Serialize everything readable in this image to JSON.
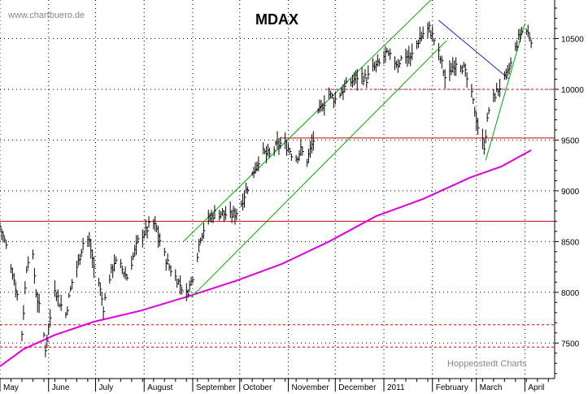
{
  "header": {
    "watermark": "www.chartbuero.de",
    "title": "MDAX",
    "credit": "Hoppenstedt Charts"
  },
  "chart_data": {
    "type": "line",
    "title": "MDAX",
    "xlabel": "",
    "ylabel": "",
    "y_range": [
      7150,
      10880
    ],
    "x_range_days": [
      0,
      354
    ],
    "y_ticks": [
      7500,
      8000,
      8500,
      9000,
      9500,
      10000,
      10500
    ],
    "y_tick_labels": [
      "7500",
      "8000",
      "8500",
      "9000",
      "9500",
      "10000",
      "10500"
    ],
    "months": [
      {
        "label": "May",
        "start": 0
      },
      {
        "label": "June",
        "start": 31
      },
      {
        "label": "July",
        "start": 61
      },
      {
        "label": "August",
        "start": 92
      },
      {
        "label": "September",
        "start": 123
      },
      {
        "label": "October",
        "start": 153
      },
      {
        "label": "November",
        "start": 184
      },
      {
        "label": "December",
        "start": 214
      },
      {
        "label": "2011",
        "start": 245
      },
      {
        "label": "February",
        "start": 276
      },
      {
        "label": "March",
        "start": 304
      },
      {
        "label": "April",
        "start": 335
      }
    ],
    "grid": true,
    "horizontal_lines": [
      {
        "y": 8700,
        "style": "solid",
        "color": "#d40000",
        "from": 0,
        "to": 354
      },
      {
        "y": 9520,
        "style": "solid",
        "color": "#d40000",
        "from": 179,
        "to": 354
      },
      {
        "y": 10000,
        "style": "dashed",
        "color": "#d40000",
        "from": 208,
        "to": 354
      },
      {
        "y": 7680,
        "style": "dashed",
        "color": "#d40000",
        "from": 0,
        "to": 354
      },
      {
        "y": 7460,
        "style": "dashed",
        "color": "#d40000",
        "from": 0,
        "to": 354
      }
    ],
    "trend_lines": [
      {
        "color": "#00aa00",
        "points": [
          [
            117,
            8500
          ],
          [
            275,
            10880
          ]
        ]
      },
      {
        "color": "#00aa00",
        "points": [
          [
            122,
            7950
          ],
          [
            285,
            10480
          ]
        ]
      },
      {
        "color": "#2222aa",
        "points": [
          [
            280,
            10680
          ],
          [
            325,
            10100
          ]
        ]
      },
      {
        "color": "#00aa00",
        "points": [
          [
            310,
            9300
          ],
          [
            335,
            10650
          ]
        ]
      }
    ],
    "moving_average": {
      "color": "#dd00dd",
      "points": [
        [
          0,
          7270
        ],
        [
          15,
          7440
        ],
        [
          35,
          7580
        ],
        [
          60,
          7710
        ],
        [
          90,
          7820
        ],
        [
          120,
          7960
        ],
        [
          150,
          8110
        ],
        [
          180,
          8280
        ],
        [
          210,
          8500
        ],
        [
          240,
          8750
        ],
        [
          270,
          8920
        ],
        [
          300,
          9130
        ],
        [
          320,
          9240
        ],
        [
          339,
          9400
        ]
      ]
    },
    "series": [
      {
        "name": "",
        "values": [
          [
            0,
            8650
          ],
          [
            4,
            8450
          ],
          [
            8,
            8200
          ],
          [
            12,
            7900
          ],
          [
            14,
            7600
          ],
          [
            17,
            8250
          ],
          [
            20,
            8500
          ],
          [
            23,
            8000
          ],
          [
            27,
            7700
          ],
          [
            29,
            7450
          ],
          [
            32,
            7750
          ],
          [
            35,
            8050
          ],
          [
            38,
            7900
          ],
          [
            42,
            7780
          ],
          [
            46,
            8100
          ],
          [
            50,
            8300
          ],
          [
            54,
            8550
          ],
          [
            57,
            8500
          ],
          [
            60,
            8250
          ],
          [
            63,
            8100
          ],
          [
            66,
            7850
          ],
          [
            69,
            8100
          ],
          [
            73,
            8300
          ],
          [
            77,
            8250
          ],
          [
            81,
            8150
          ],
          [
            85,
            8350
          ],
          [
            89,
            8550
          ],
          [
            93,
            8600
          ],
          [
            97,
            8700
          ],
          [
            100,
            8620
          ],
          [
            104,
            8400
          ],
          [
            108,
            8250
          ],
          [
            112,
            8150
          ],
          [
            116,
            8050
          ],
          [
            119,
            7980
          ],
          [
            122,
            8100
          ],
          [
            125,
            8300
          ],
          [
            128,
            8550
          ],
          [
            132,
            8700
          ],
          [
            137,
            8780
          ],
          [
            142,
            8780
          ],
          [
            147,
            8750
          ],
          [
            152,
            8800
          ],
          [
            157,
            9000
          ],
          [
            162,
            9200
          ],
          [
            167,
            9380
          ],
          [
            172,
            9350
          ],
          [
            177,
            9450
          ],
          [
            181,
            9480
          ],
          [
            185,
            9400
          ],
          [
            188,
            9300
          ],
          [
            192,
            9400
          ],
          [
            196,
            9300
          ],
          [
            200,
            9500
          ],
          [
            203,
            9750
          ],
          [
            206,
            9850
          ],
          [
            210,
            9950
          ],
          [
            214,
            9900
          ],
          [
            218,
            9980
          ],
          [
            222,
            10050
          ],
          [
            226,
            10100
          ],
          [
            230,
            10150
          ],
          [
            234,
            10100
          ],
          [
            238,
            10200
          ],
          [
            242,
            10250
          ],
          [
            246,
            10350
          ],
          [
            250,
            10300
          ],
          [
            254,
            10250
          ],
          [
            258,
            10350
          ],
          [
            262,
            10300
          ],
          [
            266,
            10450
          ],
          [
            270,
            10550
          ],
          [
            274,
            10600
          ],
          [
            278,
            10450
          ],
          [
            282,
            10250
          ],
          [
            285,
            10050
          ],
          [
            288,
            10200
          ],
          [
            292,
            10300
          ],
          [
            296,
            10200
          ],
          [
            300,
            10000
          ],
          [
            303,
            9800
          ],
          [
            306,
            9550
          ],
          [
            309,
            9450
          ],
          [
            312,
            9800
          ],
          [
            316,
            9950
          ],
          [
            320,
            10050
          ],
          [
            324,
            10150
          ],
          [
            328,
            10350
          ],
          [
            332,
            10550
          ],
          [
            335,
            10600
          ],
          [
            339,
            10500
          ]
        ]
      }
    ]
  }
}
